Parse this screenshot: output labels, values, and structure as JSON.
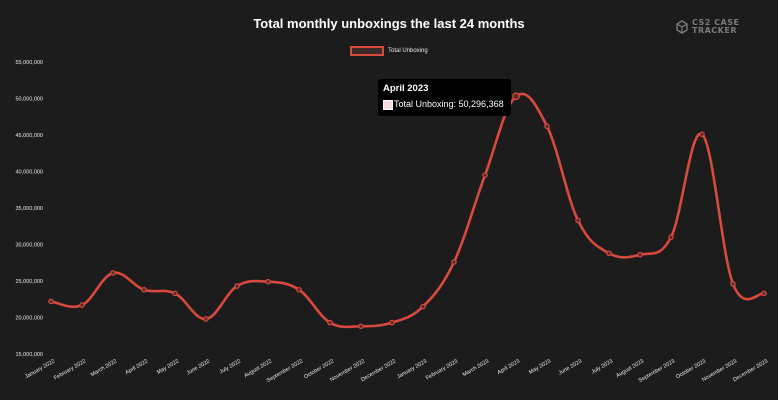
{
  "chart_data": {
    "type": "line",
    "title": "Total monthly unboxings the last 24 months",
    "legend": "Total Unboxing",
    "categories": [
      "January 2022",
      "February 2022",
      "March 2022",
      "April 2022",
      "May 2022",
      "June 2022",
      "July 2022",
      "August 2022",
      "September 2022",
      "October 2022",
      "November 2022",
      "December 2022",
      "January 2023",
      "February 2023",
      "March 2023",
      "April 2023",
      "May 2023",
      "June 2023",
      "July 2023",
      "August 2023",
      "September 2023",
      "October 2023",
      "November 2023",
      "December 2023"
    ],
    "series": [
      {
        "name": "Total Unboxing",
        "values": [
          22200000,
          21700000,
          26100000,
          23800000,
          23300000,
          19800000,
          24300000,
          24900000,
          23800000,
          19300000,
          18800000,
          19300000,
          21500000,
          27600000,
          39500000,
          50296368,
          46200000,
          33300000,
          28800000,
          28600000,
          31000000,
          45100000,
          24600000,
          23300000
        ]
      }
    ],
    "yticks": [
      "15,000,000",
      "20,000,000",
      "25,000,000",
      "30,000,000",
      "35,000,000",
      "40,000,000",
      "45,000,000",
      "50,000,000",
      "55,000,000"
    ],
    "ytick_values": [
      15000000,
      20000000,
      25000000,
      30000000,
      35000000,
      40000000,
      45000000,
      50000000,
      55000000
    ],
    "ylim": [
      15000000,
      55000000
    ],
    "grid": false,
    "color": "#d84a3e",
    "tooltip": {
      "title": "April 2023",
      "label": "Total Unboxing: 50,296,368"
    }
  },
  "logo": {
    "line1": "CS2 CASE",
    "line2": "TRACKER"
  }
}
